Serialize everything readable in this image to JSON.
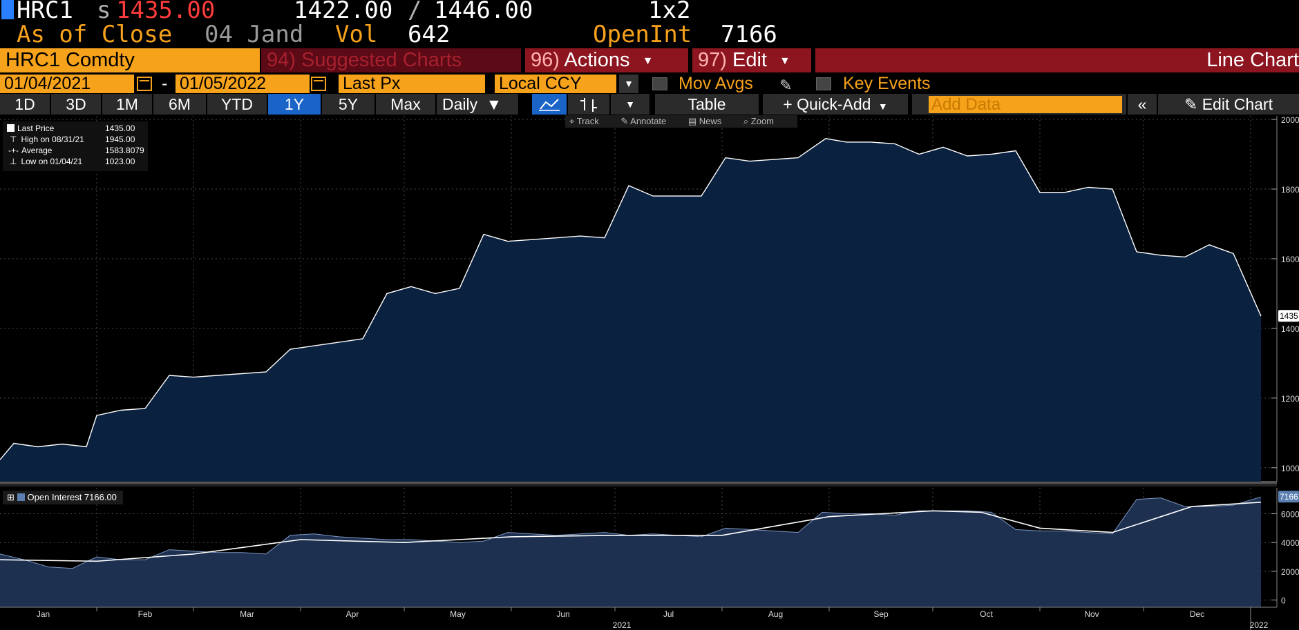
{
  "quote": {
    "ticker": "HRC1",
    "s_prefix": "s",
    "last": "1435.00",
    "bid": "1422.00",
    "slash": "/",
    "ask": "1446.00",
    "size": "1x2",
    "asof_label": "As of Close",
    "asof_date": "04 Jand",
    "vol_label": "Vol",
    "vol_value": "642",
    "oi_label": "OpenInt",
    "oi_value": "7166"
  },
  "function_bar": {
    "security": "HRC1 Comdty",
    "suggested_num": "94)",
    "suggested": "Suggested Charts",
    "actions_num": "96)",
    "actions": "Actions",
    "edit_num": "97)",
    "edit": "Edit",
    "chart_type": "Line Chart"
  },
  "params": {
    "date_from": "01/04/2021",
    "dash": "-",
    "date_to": "01/05/2022",
    "field": "Last Px",
    "currency": "Local CCY",
    "mov_avgs": "Mov Avgs",
    "key_events": "Key Events"
  },
  "range_bar": {
    "ranges": [
      "1D",
      "3D",
      "1M",
      "6M",
      "YTD",
      "1Y",
      "5Y",
      "Max"
    ],
    "active": "1Y",
    "periodicity": "Daily",
    "table": "Table",
    "quick_add": "Quick-Add",
    "add_data_placeholder": "Add Data",
    "edit_chart": "Edit Chart"
  },
  "tools": {
    "track": "Track",
    "annotate": "Annotate",
    "news": "News",
    "zoom": "Zoom"
  },
  "legend": [
    {
      "label": "Last Price",
      "value": "1435.00"
    },
    {
      "label": "High on 08/31/21",
      "value": "1945.00"
    },
    {
      "label": "Average",
      "value": "1583.8079"
    },
    {
      "label": "Low on 01/04/21",
      "value": "1023.00"
    }
  ],
  "legend2": {
    "label": "Open Interest 7166.00"
  },
  "colors": {
    "accent_orange": "#f7a21b",
    "button_red": "#8c1520",
    "active_blue": "#1a64c8",
    "area_fill": "#0b2140",
    "line": "#ffffff",
    "oi_area": "#1d3050"
  },
  "chart_data": [
    {
      "type": "area",
      "title": "",
      "series": [
        {
          "name": "Last Price",
          "x": [
            "2021-01-04",
            "2021-01-08",
            "2021-01-15",
            "2021-01-22",
            "2021-01-29",
            "2021-02-01",
            "2021-02-08",
            "2021-02-15",
            "2021-02-22",
            "2021-03-01",
            "2021-03-08",
            "2021-03-15",
            "2021-03-22",
            "2021-03-29",
            "2021-04-05",
            "2021-04-12",
            "2021-04-19",
            "2021-04-26",
            "2021-05-03",
            "2021-05-10",
            "2021-05-17",
            "2021-05-24",
            "2021-05-31",
            "2021-06-07",
            "2021-06-14",
            "2021-06-21",
            "2021-06-28",
            "2021-07-05",
            "2021-07-12",
            "2021-07-19",
            "2021-07-26",
            "2021-08-02",
            "2021-08-09",
            "2021-08-16",
            "2021-08-23",
            "2021-08-31",
            "2021-09-06",
            "2021-09-13",
            "2021-09-20",
            "2021-09-27",
            "2021-10-04",
            "2021-10-11",
            "2021-10-18",
            "2021-10-25",
            "2021-11-01",
            "2021-11-08",
            "2021-11-15",
            "2021-11-22",
            "2021-11-29",
            "2021-12-06",
            "2021-12-13",
            "2021-12-20",
            "2021-12-27",
            "2022-01-04"
          ],
          "y": [
            1023,
            1070,
            1060,
            1068,
            1060,
            1150,
            1165,
            1170,
            1265,
            1260,
            1265,
            1270,
            1275,
            1340,
            1350,
            1360,
            1370,
            1500,
            1520,
            1500,
            1515,
            1670,
            1650,
            1655,
            1660,
            1665,
            1660,
            1810,
            1780,
            1780,
            1780,
            1890,
            1880,
            1885,
            1890,
            1945,
            1935,
            1935,
            1930,
            1900,
            1920,
            1895,
            1900,
            1910,
            1790,
            1790,
            1805,
            1800,
            1620,
            1610,
            1605,
            1640,
            1615,
            1435
          ]
        }
      ],
      "ylim": [
        960,
        2010
      ],
      "yticks": [
        1000,
        1200,
        1400,
        1600,
        1800,
        2000
      ],
      "last_value_label": "1435",
      "grid": true,
      "legend_position": "top-left"
    },
    {
      "type": "area",
      "title": "",
      "series": [
        {
          "name": "Open Interest",
          "x": [
            "2021-01-04",
            "2021-01-11",
            "2021-01-18",
            "2021-01-25",
            "2021-02-01",
            "2021-02-08",
            "2021-02-15",
            "2021-02-22",
            "2021-03-01",
            "2021-03-08",
            "2021-03-15",
            "2021-03-22",
            "2021-03-29",
            "2021-04-05",
            "2021-04-12",
            "2021-04-19",
            "2021-04-26",
            "2021-05-03",
            "2021-05-10",
            "2021-05-17",
            "2021-05-24",
            "2021-05-31",
            "2021-06-07",
            "2021-06-14",
            "2021-06-21",
            "2021-06-28",
            "2021-07-05",
            "2021-07-12",
            "2021-07-19",
            "2021-07-26",
            "2021-08-02",
            "2021-08-09",
            "2021-08-16",
            "2021-08-23",
            "2021-08-30",
            "2021-09-06",
            "2021-09-13",
            "2021-09-20",
            "2021-09-27",
            "2021-10-04",
            "2021-10-11",
            "2021-10-18",
            "2021-10-25",
            "2021-11-01",
            "2021-11-08",
            "2021-11-15",
            "2021-11-22",
            "2021-11-29",
            "2021-12-06",
            "2021-12-13",
            "2021-12-20",
            "2021-12-27",
            "2022-01-04"
          ],
          "y": [
            3200,
            2800,
            2300,
            2200,
            3000,
            2800,
            2800,
            3500,
            3400,
            3300,
            3300,
            3200,
            4500,
            4600,
            4400,
            4300,
            4200,
            4200,
            4100,
            4000,
            4100,
            4700,
            4600,
            4500,
            4600,
            4700,
            4500,
            4600,
            4500,
            4400,
            5000,
            4900,
            4800,
            4700,
            6100,
            6000,
            6000,
            5900,
            6200,
            6200,
            6200,
            6100,
            4900,
            4800,
            4800,
            4700,
            4600,
            7000,
            7100,
            6500,
            6500,
            6600,
            7166
          ]
        },
        {
          "name": "Moving Average",
          "x": [
            "2021-01-04",
            "2021-02-01",
            "2021-03-01",
            "2021-04-01",
            "2021-05-01",
            "2021-06-01",
            "2021-07-01",
            "2021-08-01",
            "2021-09-01",
            "2021-10-01",
            "2021-10-15",
            "2021-11-01",
            "2021-11-22",
            "2021-12-15",
            "2022-01-04"
          ],
          "y": [
            2800,
            2700,
            3200,
            4200,
            4000,
            4400,
            4500,
            4500,
            5800,
            6200,
            6100,
            5000,
            4700,
            6500,
            6800
          ]
        }
      ],
      "ylim": [
        -500,
        7800
      ],
      "yticks": [
        0,
        2000,
        4000,
        6000
      ],
      "last_value_label": "7166",
      "grid": true,
      "legend_position": "top-left"
    }
  ],
  "x_axis": {
    "months": [
      "Jan",
      "Feb",
      "Mar",
      "Apr",
      "May",
      "Jun",
      "Jul",
      "Aug",
      "Sep",
      "Oct",
      "Nov",
      "Dec"
    ],
    "year_labels": [
      "2021",
      "2022"
    ]
  }
}
